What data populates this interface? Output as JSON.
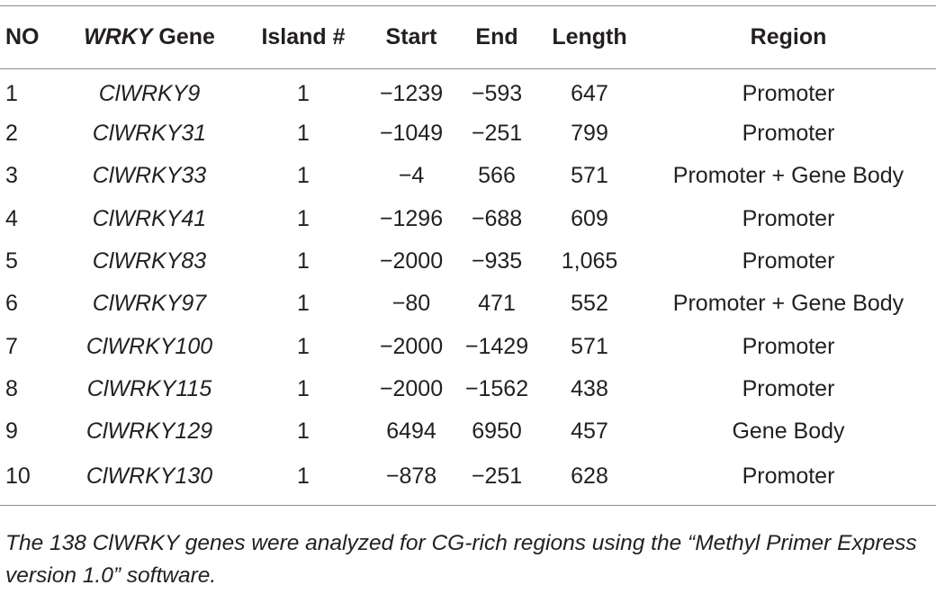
{
  "table": {
    "headers": {
      "no": "NO",
      "gene_italic": "WRKY",
      "gene_rest": " Gene",
      "island": "Island #",
      "start": "Start",
      "end": "End",
      "length": "Length",
      "region": "Region"
    },
    "rows": [
      {
        "no": "1",
        "gene": "ClWRKY9",
        "island": "1",
        "start": "−1239",
        "end": "−593",
        "length": "647",
        "region": "Promoter"
      },
      {
        "no": "2",
        "gene": "ClWRKY31",
        "island": "1",
        "start": "−1049",
        "end": "−251",
        "length": "799",
        "region": "Promoter"
      },
      {
        "no": "3",
        "gene": "ClWRKY33",
        "island": "1",
        "start": "−4",
        "end": "566",
        "length": "571",
        "region": "Promoter + Gene Body"
      },
      {
        "no": "4",
        "gene": "ClWRKY41",
        "island": "1",
        "start": "−1296",
        "end": "−688",
        "length": "609",
        "region": "Promoter"
      },
      {
        "no": "5",
        "gene": "ClWRKY83",
        "island": "1",
        "start": "−2000",
        "end": "−935",
        "length": "1,065",
        "region": "Promoter"
      },
      {
        "no": "6",
        "gene": "ClWRKY97",
        "island": "1",
        "start": "−80",
        "end": "471",
        "length": "552",
        "region": "Promoter + Gene Body"
      },
      {
        "no": "7",
        "gene": "ClWRKY100",
        "island": "1",
        "start": "−2000",
        "end": "−1429",
        "length": "571",
        "region": "Promoter"
      },
      {
        "no": "8",
        "gene": "ClWRKY115",
        "island": "1",
        "start": "−2000",
        "end": "−1562",
        "length": "438",
        "region": "Promoter"
      },
      {
        "no": "9",
        "gene": "ClWRKY129",
        "island": "1",
        "start": "6494",
        "end": "6950",
        "length": "457",
        "region": "Gene Body"
      },
      {
        "no": "10",
        "gene": "ClWRKY130",
        "island": "1",
        "start": "−878",
        "end": "−251",
        "length": "628",
        "region": "Promoter"
      }
    ]
  },
  "footnote": "The 138 ClWRKY genes were analyzed for CG-rich regions using the “Methyl Primer Express version 1.0” software."
}
